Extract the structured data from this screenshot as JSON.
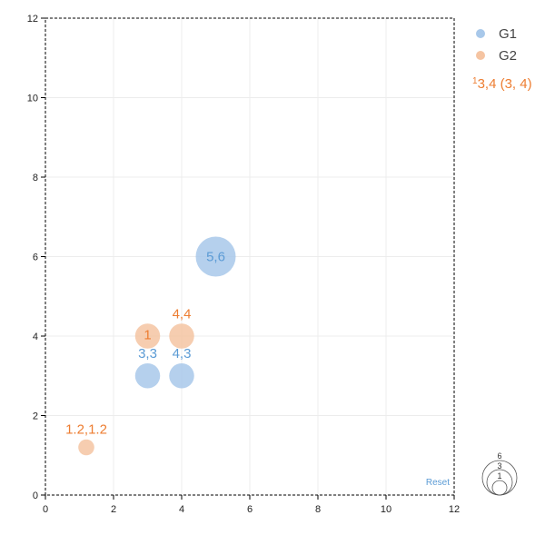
{
  "chart_data": {
    "type": "scatter",
    "xlim": [
      0,
      12
    ],
    "ylim": [
      0,
      12
    ],
    "x_ticks": [
      0,
      2,
      4,
      6,
      8,
      10,
      12
    ],
    "y_ticks": [
      0,
      2,
      4,
      6,
      8,
      10,
      12
    ],
    "grid": true,
    "legend_position": "top-right",
    "series": [
      {
        "name": "G1",
        "color": "#a8c8ea",
        "label_color": "#5b9bd5",
        "points": [
          {
            "x": 3,
            "y": 3,
            "size": 3,
            "label": "3,3"
          },
          {
            "x": 4,
            "y": 3,
            "size": 3,
            "label": "4,3"
          },
          {
            "x": 5,
            "y": 6,
            "size": 6,
            "label": "5,6",
            "label_inside": true
          }
        ]
      },
      {
        "name": "G2",
        "color": "#f5c4a2",
        "label_color": "#ed7d31",
        "points": [
          {
            "x": 3,
            "y": 4,
            "size": 3,
            "label": "1",
            "label_inside": true
          },
          {
            "x": 4,
            "y": 4,
            "size": 3,
            "label": "4,4"
          },
          {
            "x": 1.2,
            "y": 1.2,
            "size": 1.2,
            "label": "1.2,1.2"
          }
        ]
      }
    ],
    "annotation": {
      "marker": "1",
      "text": "3,4 (3, 4)",
      "color": "#ed7d31"
    },
    "size_legend": [
      "6",
      "3",
      "1"
    ],
    "reset_label": "Reset",
    "reset_color": "#5b9bd5"
  }
}
